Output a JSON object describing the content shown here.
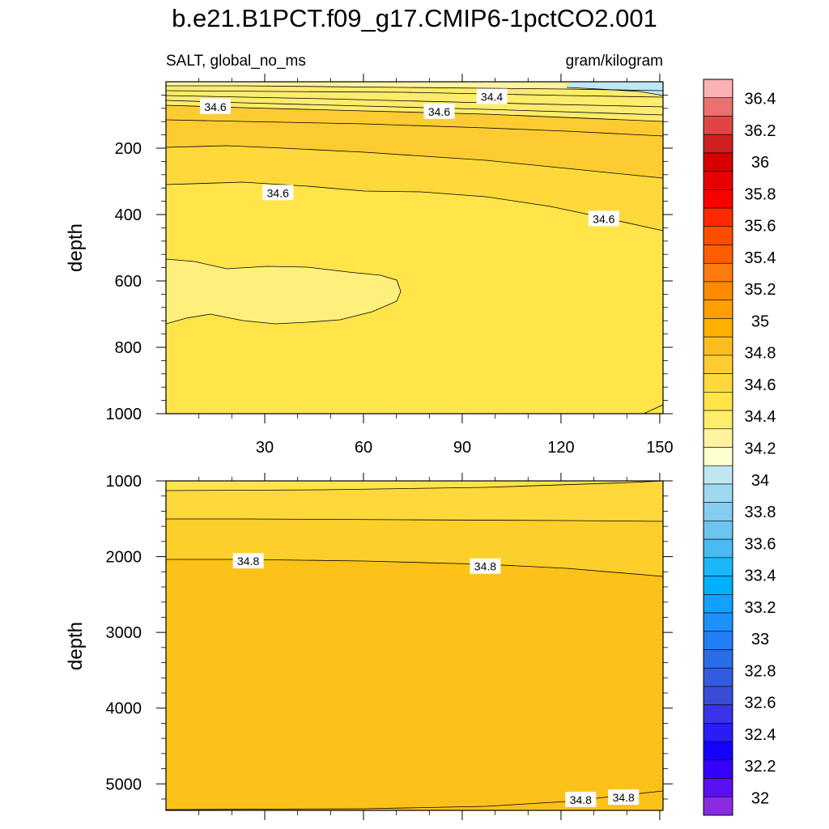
{
  "title": "b.e21.B1PCT.f09_g17.CMIP6-1pctCO2.001",
  "chart_data": [
    {
      "type": "heatmap",
      "panel": "top",
      "left_label": "SALT, global_no_ms",
      "right_label": "gram/kilogram",
      "ylabel": "depth",
      "xlabel": "",
      "xlim": [
        0,
        151
      ],
      "ylim": [
        0,
        1000
      ],
      "y_reversed": true,
      "xticks": [
        30,
        60,
        90,
        120,
        150
      ],
      "yticks": [
        200,
        400,
        600,
        800,
        1000
      ],
      "contour_labels": [
        {
          "text": "34.6",
          "x": 15,
          "y": 75
        },
        {
          "text": "34.4",
          "x": 99,
          "y": 45
        },
        {
          "text": "34.6",
          "x": 83,
          "y": 90
        },
        {
          "text": "34.6",
          "x": 34,
          "y": 335
        },
        {
          "text": "34.6",
          "x": 133,
          "y": 413
        }
      ]
    },
    {
      "type": "heatmap",
      "panel": "bottom",
      "ylabel": "depth",
      "xlabel": "",
      "xlim": [
        0,
        151
      ],
      "ylim": [
        1000,
        5350
      ],
      "y_reversed": true,
      "xticks": [
        30,
        60,
        90,
        120,
        150
      ],
      "yticks": [
        1000,
        2000,
        3000,
        4000,
        5000
      ],
      "contour_labels": [
        {
          "text": "34.8",
          "x": 25,
          "y": 2060
        },
        {
          "text": "34.8",
          "x": 97,
          "y": 2130
        },
        {
          "text": "34.8",
          "x": 126,
          "y": 5210
        },
        {
          "text": "34.8",
          "x": 139,
          "y": 5180
        }
      ]
    }
  ],
  "colorbar": {
    "labels": [
      "36.4",
      "36.2",
      "36",
      "35.8",
      "35.6",
      "35.4",
      "35.2",
      "35",
      "34.8",
      "34.6",
      "34.4",
      "34.2",
      "34",
      "33.8",
      "33.6",
      "33.4",
      "33.2",
      "33",
      "32.8",
      "32.6",
      "32.4",
      "32.2",
      "32"
    ],
    "colors": [
      "#fbb2b2",
      "#eb7070",
      "#e04545",
      "#cf1f1f",
      "#d60000",
      "#e60000",
      "#fb0000",
      "#ff2a00",
      "#ff4d00",
      "#fe5e00",
      "#ff7a10",
      "#ff8c00",
      "#ffa000",
      "#ffb000",
      "#fbbd1e",
      "#fccc32",
      "#ffd93c",
      "#ffe44a",
      "#fdec6d",
      "#fff3a0",
      "#ffffcf",
      "#bfe6f3",
      "#9ed8f1",
      "#86cdf0",
      "#6cc4ef",
      "#48bbf5",
      "#1bb7fb",
      "#00b0ff",
      "#12a1ff",
      "#1d90fb",
      "#217ef3",
      "#2a6de9",
      "#325cdf",
      "#3a4bd6",
      "#3a33e9",
      "#2a1cf5",
      "#1600ff",
      "#3600ff",
      "#5a10f0",
      "#8a2be2"
    ]
  }
}
